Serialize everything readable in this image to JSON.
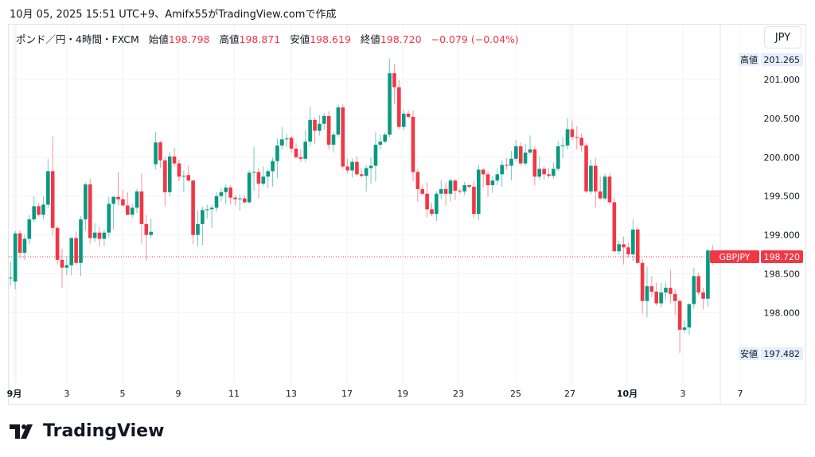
{
  "caption": "10月 05, 2025 15:51 UTC+9、Amifx55がTradingView.comで作成",
  "legend": {
    "symbol": "ポンド／円・4時間・FXCM",
    "open_label": "始値",
    "open": "198.798",
    "high_label": "高値",
    "high": "198.871",
    "low_label": "安値",
    "low": "198.619",
    "close_label": "終値",
    "close": "198.720",
    "change": "−0.079 (−0.04%)"
  },
  "currency_button": "JPY",
  "logo_text": "TradingView",
  "colors": {
    "up": "#089981",
    "down": "#f23645",
    "grid": "#f2f3f5",
    "label_bg": "#e3effd"
  },
  "chart_data": {
    "type": "candlestick",
    "title": "ポンド／円・4時間・FXCM",
    "symbol": "GBPJPY",
    "interval": "4時間",
    "ylim": [
      197.1,
      201.6
    ],
    "grid": true,
    "y_ticks": [
      "201.000",
      "200.500",
      "200.000",
      "199.500",
      "199.000",
      "198.500",
      "198.000"
    ],
    "y_tick_values": [
      201.0,
      200.5,
      200.0,
      199.5,
      199.0,
      198.5,
      198.0
    ],
    "x_ticks": [
      "9月",
      "3",
      "5",
      "9",
      "11",
      "13",
      "17",
      "19",
      "23",
      "25",
      "27",
      "10月",
      "3",
      "7"
    ],
    "high_marker": {
      "label": "高値",
      "value": "201.265"
    },
    "low_marker": {
      "label": "安値",
      "value": "197.482"
    },
    "last_price": {
      "label": "GBPJPY",
      "value": "198.720",
      "price": 198.72
    },
    "ohlc_columns": [
      "open",
      "high",
      "low",
      "close"
    ],
    "ohlc": [
      [
        198.45,
        198.66,
        198.35,
        198.45
      ],
      [
        198.4,
        199.05,
        198.3,
        199.02
      ],
      [
        199.02,
        199.06,
        198.7,
        198.77
      ],
      [
        198.77,
        199.0,
        198.68,
        198.95
      ],
      [
        198.95,
        199.26,
        198.88,
        199.2
      ],
      [
        199.2,
        199.5,
        199.17,
        199.37
      ],
      [
        199.37,
        199.41,
        199.24,
        199.26
      ],
      [
        199.26,
        199.5,
        199.2,
        199.39
      ],
      [
        199.39,
        199.98,
        199.34,
        199.82
      ],
      [
        199.82,
        200.27,
        198.99,
        199.09
      ],
      [
        199.09,
        199.12,
        198.62,
        198.68
      ],
      [
        198.68,
        198.82,
        198.32,
        198.58
      ],
      [
        198.58,
        198.71,
        198.48,
        198.61
      ],
      [
        198.61,
        198.97,
        198.48,
        198.96
      ],
      [
        198.96,
        199.05,
        198.62,
        198.64
      ],
      [
        198.64,
        199.24,
        198.47,
        199.2
      ],
      [
        199.2,
        199.67,
        199.05,
        199.65
      ],
      [
        199.65,
        199.72,
        198.89,
        198.96
      ],
      [
        198.96,
        199.15,
        198.91,
        199.03
      ],
      [
        199.03,
        199.1,
        198.85,
        198.95
      ],
      [
        198.95,
        199.07,
        198.86,
        199.03
      ],
      [
        199.03,
        199.49,
        198.97,
        199.4
      ],
      [
        199.4,
        199.5,
        199.07,
        199.49
      ],
      [
        199.49,
        199.81,
        199.38,
        199.46
      ],
      [
        199.46,
        199.58,
        199.36,
        199.38
      ],
      [
        199.38,
        199.55,
        199.25,
        199.26
      ],
      [
        199.26,
        199.4,
        199.22,
        199.35
      ],
      [
        199.35,
        199.59,
        199.28,
        199.56
      ],
      [
        199.56,
        199.79,
        198.89,
        199.14
      ],
      [
        199.14,
        199.26,
        198.67,
        199.0
      ],
      [
        199.0,
        199.21,
        198.96,
        199.04
      ],
      [
        199.91,
        200.33,
        199.84,
        200.19
      ],
      [
        200.19,
        200.21,
        199.86,
        199.96
      ],
      [
        199.96,
        200.01,
        199.37,
        199.55
      ],
      [
        199.55,
        200.07,
        199.5,
        200.01
      ],
      [
        200.01,
        200.12,
        199.88,
        199.92
      ],
      [
        199.92,
        199.97,
        199.69,
        199.75
      ],
      [
        199.75,
        199.83,
        199.55,
        199.76
      ],
      [
        199.77,
        199.89,
        199.69,
        199.7
      ],
      [
        199.7,
        199.71,
        198.88,
        199.0
      ],
      [
        199.0,
        199.31,
        198.85,
        199.14
      ],
      [
        199.14,
        199.37,
        198.87,
        199.32
      ],
      [
        199.32,
        199.39,
        199.21,
        199.33
      ],
      [
        199.33,
        199.39,
        199.09,
        199.35
      ],
      [
        199.35,
        199.55,
        199.3,
        199.5
      ],
      [
        199.5,
        199.6,
        199.43,
        199.55
      ],
      [
        199.55,
        199.65,
        199.4,
        199.61
      ],
      [
        199.61,
        199.64,
        199.39,
        199.48
      ],
      [
        199.48,
        199.51,
        199.38,
        199.46
      ],
      [
        199.46,
        199.52,
        199.31,
        199.47
      ],
      [
        199.47,
        199.51,
        199.4,
        199.42
      ],
      [
        199.42,
        199.83,
        199.4,
        199.8
      ],
      [
        199.8,
        200.13,
        199.57,
        199.81
      ],
      [
        199.81,
        199.86,
        199.47,
        199.66
      ],
      [
        199.66,
        199.88,
        199.63,
        199.75
      ],
      [
        199.75,
        199.85,
        199.6,
        199.82
      ],
      [
        199.82,
        200.0,
        199.62,
        199.95
      ],
      [
        199.95,
        200.24,
        199.73,
        200.15
      ],
      [
        200.15,
        200.39,
        200.1,
        200.23
      ],
      [
        200.23,
        200.3,
        200.13,
        200.24
      ],
      [
        200.25,
        200.27,
        200.06,
        200.11
      ],
      [
        200.11,
        200.18,
        199.98,
        200.0
      ],
      [
        200.0,
        200.1,
        199.94,
        199.98
      ],
      [
        199.98,
        200.35,
        199.94,
        200.2
      ],
      [
        200.2,
        200.65,
        200.14,
        200.48
      ],
      [
        200.48,
        200.51,
        200.17,
        200.34
      ],
      [
        200.34,
        200.54,
        200.28,
        200.43
      ],
      [
        200.43,
        200.57,
        200.35,
        200.53
      ],
      [
        200.53,
        200.59,
        200.1,
        200.16
      ],
      [
        200.16,
        200.33,
        200.06,
        200.29
      ],
      [
        200.29,
        200.68,
        200.26,
        200.64
      ],
      [
        200.64,
        200.68,
        199.85,
        199.88
      ],
      [
        199.88,
        199.98,
        199.79,
        199.83
      ],
      [
        199.83,
        199.98,
        199.74,
        199.94
      ],
      [
        199.94,
        200.01,
        199.76,
        199.78
      ],
      [
        199.78,
        199.86,
        199.73,
        199.76
      ],
      [
        199.76,
        199.9,
        199.56,
        199.86
      ],
      [
        199.86,
        200.0,
        199.66,
        199.89
      ],
      [
        199.89,
        200.32,
        199.69,
        200.16
      ],
      [
        200.16,
        200.29,
        200.1,
        200.2
      ],
      [
        200.2,
        200.32,
        200.18,
        200.29
      ],
      [
        200.29,
        201.265,
        200.26,
        201.08
      ],
      [
        201.08,
        201.2,
        200.68,
        200.9
      ],
      [
        200.9,
        200.99,
        200.36,
        200.39
      ],
      [
        200.39,
        200.61,
        200.35,
        200.56
      ],
      [
        200.56,
        200.6,
        200.5,
        200.52
      ],
      [
        200.52,
        200.6,
        199.69,
        199.81
      ],
      [
        199.81,
        199.85,
        199.43,
        199.59
      ],
      [
        199.59,
        199.65,
        199.51,
        199.53
      ],
      [
        199.53,
        199.68,
        199.23,
        199.33
      ],
      [
        199.33,
        199.41,
        199.24,
        199.27
      ],
      [
        199.27,
        199.56,
        199.18,
        199.53
      ],
      [
        199.53,
        199.71,
        199.46,
        199.59
      ],
      [
        199.59,
        199.68,
        199.38,
        199.53
      ],
      [
        199.53,
        199.73,
        199.43,
        199.7
      ],
      [
        199.7,
        199.72,
        199.45,
        199.57
      ],
      [
        199.57,
        199.6,
        199.53,
        199.56
      ],
      [
        199.56,
        199.68,
        199.51,
        199.64
      ],
      [
        199.64,
        199.65,
        199.6,
        199.62
      ],
      [
        199.62,
        199.7,
        199.21,
        199.27
      ],
      [
        199.27,
        199.91,
        199.19,
        199.84
      ],
      [
        199.84,
        199.86,
        199.61,
        199.78
      ],
      [
        199.78,
        199.82,
        199.49,
        199.64
      ],
      [
        199.64,
        199.76,
        199.54,
        199.7
      ],
      [
        199.7,
        199.86,
        199.64,
        199.78
      ],
      [
        199.78,
        199.96,
        199.62,
        199.9
      ],
      [
        199.9,
        199.99,
        199.84,
        199.89
      ],
      [
        199.89,
        200.08,
        199.7,
        199.98
      ],
      [
        199.98,
        200.22,
        199.95,
        200.14
      ],
      [
        200.14,
        200.19,
        199.89,
        199.92
      ],
      [
        199.92,
        200.17,
        199.89,
        200.06
      ],
      [
        200.06,
        200.28,
        200.03,
        200.1
      ],
      [
        200.1,
        200.14,
        199.64,
        199.75
      ],
      [
        199.75,
        200.01,
        199.71,
        199.85
      ],
      [
        199.85,
        199.89,
        199.71,
        199.78
      ],
      [
        199.78,
        199.86,
        199.73,
        199.76
      ],
      [
        199.76,
        199.93,
        199.72,
        199.85
      ],
      [
        199.85,
        200.21,
        199.82,
        200.14
      ],
      [
        200.14,
        200.26,
        199.99,
        200.15
      ],
      [
        200.15,
        200.5,
        200.1,
        200.36
      ],
      [
        200.36,
        200.47,
        200.22,
        200.26
      ],
      [
        200.26,
        200.4,
        200.1,
        200.25
      ],
      [
        200.25,
        200.31,
        200.07,
        200.15
      ],
      [
        200.15,
        200.18,
        199.54,
        199.56
      ],
      [
        199.56,
        199.97,
        199.52,
        199.89
      ],
      [
        199.89,
        199.99,
        199.35,
        199.56
      ],
      [
        199.56,
        199.75,
        199.45,
        199.47
      ],
      [
        199.47,
        199.79,
        199.44,
        199.75
      ],
      [
        199.75,
        199.79,
        199.39,
        199.42
      ],
      [
        199.42,
        199.48,
        198.78,
        198.79
      ],
      [
        198.79,
        198.93,
        198.75,
        198.88
      ],
      [
        198.88,
        198.98,
        198.62,
        198.84
      ],
      [
        198.84,
        198.9,
        198.71,
        198.75
      ],
      [
        198.75,
        199.2,
        198.66,
        199.07
      ],
      [
        199.07,
        199.1,
        198.63,
        198.64
      ],
      [
        198.64,
        198.69,
        197.99,
        198.15
      ],
      [
        198.15,
        198.59,
        197.94,
        198.34
      ],
      [
        198.34,
        198.47,
        198.2,
        198.27
      ],
      [
        198.27,
        198.39,
        198.09,
        198.12
      ],
      [
        198.12,
        198.38,
        198.07,
        198.26
      ],
      [
        198.26,
        198.39,
        198.17,
        198.32
      ],
      [
        198.32,
        198.55,
        198.12,
        198.24
      ],
      [
        198.24,
        198.3,
        197.97,
        198.15
      ],
      [
        198.15,
        198.17,
        197.482,
        197.78
      ],
      [
        197.78,
        197.9,
        197.74,
        197.81
      ],
      [
        197.81,
        198.12,
        197.71,
        198.11
      ],
      [
        198.11,
        198.58,
        198.05,
        198.47
      ],
      [
        198.47,
        198.51,
        198.23,
        198.26
      ],
      [
        198.26,
        198.32,
        198.04,
        198.18
      ],
      [
        198.18,
        198.82,
        198.08,
        198.8
      ],
      [
        198.798,
        198.871,
        198.619,
        198.72
      ]
    ]
  }
}
